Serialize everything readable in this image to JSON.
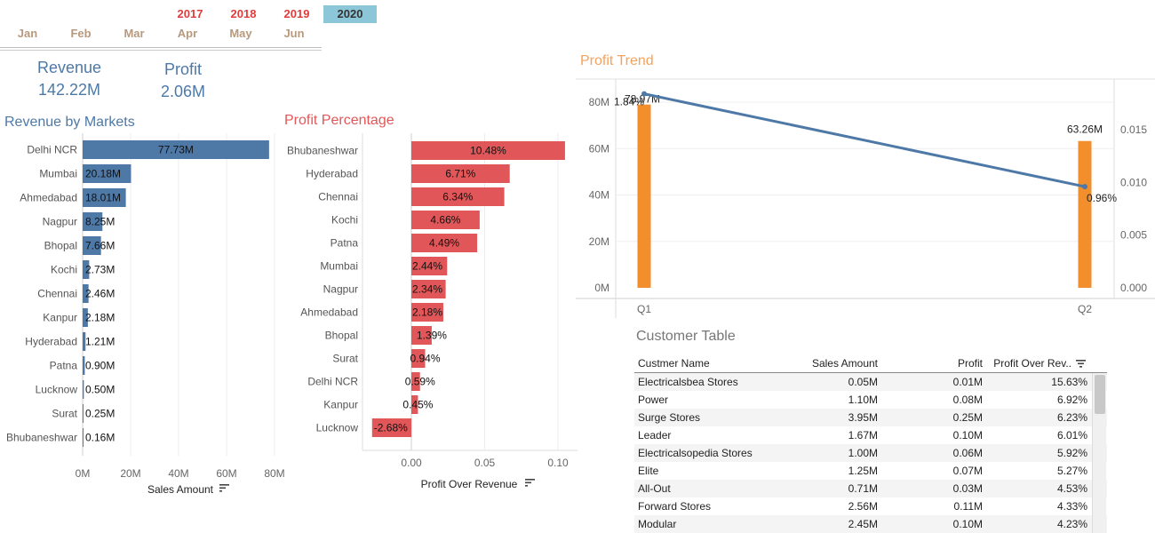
{
  "filters": {
    "years": [
      {
        "label": "2017",
        "active": false
      },
      {
        "label": "2018",
        "active": false
      },
      {
        "label": "2019",
        "active": false
      },
      {
        "label": "2020",
        "active": true
      }
    ],
    "months": [
      "Jan",
      "Feb",
      "Mar",
      "Apr",
      "May",
      "Jun"
    ]
  },
  "kpis": {
    "revenue": {
      "label": "Revenue",
      "value": "142.22M"
    },
    "profit": {
      "label": "Profit",
      "value": "2.06M"
    }
  },
  "titles": {
    "revenue_by_markets": "Revenue by Markets",
    "profit_percentage": "Profit Percentage",
    "profit_trend": "Profit Trend",
    "customer_table": "Customer Table"
  },
  "colors": {
    "blue": "#4e79a7",
    "red": "#e15759",
    "orange": "#f28e2b",
    "title_orange": "#f5a25d",
    "year_red": "#e03c3c",
    "year_active_bg": "#8cc6d9"
  },
  "chart_data": [
    {
      "type": "bar",
      "orientation": "horizontal",
      "title": "Revenue by Markets",
      "xlabel": "Sales Amount",
      "ylabel": "",
      "xlim": [
        0,
        80
      ],
      "xticks": [
        "0M",
        "20M",
        "40M",
        "60M",
        "80M"
      ],
      "categories": [
        "Delhi NCR",
        "Mumbai",
        "Ahmedabad",
        "Nagpur",
        "Bhopal",
        "Kochi",
        "Chennai",
        "Kanpur",
        "Hyderabad",
        "Patna",
        "Lucknow",
        "Surat",
        "Bhubaneshwar"
      ],
      "values": [
        77.73,
        20.18,
        18.01,
        8.25,
        7.66,
        2.73,
        2.46,
        2.18,
        1.21,
        0.9,
        0.5,
        0.25,
        0.16
      ],
      "labels": [
        "77.73M",
        "20.18M",
        "18.01M",
        "8.25M",
        "7.66M",
        "2.73M",
        "2.46M",
        "2.18M",
        "1.21M",
        "0.90M",
        "0.50M",
        "0.25M",
        "0.16M"
      ],
      "grid": true
    },
    {
      "type": "bar",
      "orientation": "horizontal",
      "title": "Profit Percentage",
      "xlabel": "Profit Over Revenue",
      "ylabel": "",
      "xlim": [
        -0.03,
        0.105
      ],
      "xticks": [
        "0.00",
        "0.05",
        "0.10"
      ],
      "xtick_values": [
        0,
        0.05,
        0.1
      ],
      "categories": [
        "Bhubaneshwar",
        "Hyderabad",
        "Chennai",
        "Kochi",
        "Patna",
        "Mumbai",
        "Nagpur",
        "Ahmedabad",
        "Bhopal",
        "Surat",
        "Delhi NCR",
        "Kanpur",
        "Lucknow"
      ],
      "values": [
        0.1048,
        0.0671,
        0.0634,
        0.0466,
        0.0449,
        0.0244,
        0.0234,
        0.0218,
        0.0139,
        0.0094,
        0.0059,
        0.0045,
        -0.0268
      ],
      "labels": [
        "10.48%",
        "6.71%",
        "6.34%",
        "4.66%",
        "4.49%",
        "2.44%",
        "2.34%",
        "2.18%",
        "1.39%",
        "0.94%",
        "0.59%",
        "0.45%",
        "-2.68%"
      ],
      "grid": true
    },
    {
      "type": "bar+line",
      "title": "Profit Trend",
      "categories": [
        "Q1",
        "Q2"
      ],
      "bars": {
        "values": [
          78.97,
          63.26
        ],
        "labels": [
          "78.97M",
          "63.26M"
        ]
      },
      "line": {
        "values": [
          0.0184,
          0.0096
        ],
        "labels": [
          "1.84%",
          "0.96%"
        ]
      },
      "left_axis": {
        "ylim": [
          0,
          90
        ],
        "ticks": [
          "0M",
          "20M",
          "40M",
          "60M",
          "80M"
        ],
        "tick_values": [
          0,
          20,
          40,
          60,
          80
        ]
      },
      "right_axis": {
        "ylim": [
          -0.0003,
          0.0185
        ],
        "ticks": [
          "0.000",
          "0.005",
          "0.010",
          "0.015"
        ],
        "tick_values": [
          0,
          0.005,
          0.01,
          0.015
        ]
      },
      "grid": true
    }
  ],
  "sort_icon": "sort-descending-icon",
  "customer_table": {
    "headers": [
      "Custmer Name",
      "Sales Amount",
      "Profit",
      "Profit Over Rev.."
    ],
    "rows": [
      [
        "Electricalsbea Stores",
        "0.05M",
        "0.01M",
        "15.63%"
      ],
      [
        "Power",
        "1.10M",
        "0.08M",
        "6.92%"
      ],
      [
        "Surge Stores",
        "3.95M",
        "0.25M",
        "6.23%"
      ],
      [
        "Leader",
        "1.67M",
        "0.10M",
        "6.01%"
      ],
      [
        "Electricalsopedia Stores",
        "1.00M",
        "0.06M",
        "5.92%"
      ],
      [
        "Elite",
        "1.25M",
        "0.07M",
        "5.27%"
      ],
      [
        "All-Out",
        "0.71M",
        "0.03M",
        "4.53%"
      ],
      [
        "Forward Stores",
        "2.56M",
        "0.11M",
        "4.33%"
      ],
      [
        "Modular",
        "2.45M",
        "0.10M",
        "4.23%"
      ]
    ]
  }
}
